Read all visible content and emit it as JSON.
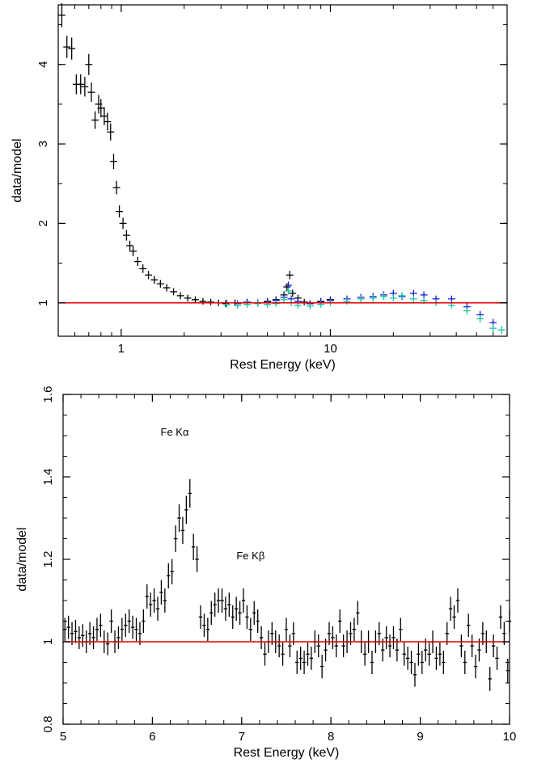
{
  "chart_data": [
    {
      "type": "scatter",
      "title": "",
      "xlabel": "Rest Energy (keV)",
      "ylabel": "data/model",
      "xscale": "log",
      "xlim": [
        0.5,
        70
      ],
      "ylim": [
        0.58,
        4.75
      ],
      "xticks": [
        1,
        10
      ],
      "xtick_labels": [
        "1",
        "10"
      ],
      "yticks": [
        1,
        2,
        3,
        4
      ],
      "ytick_labels": [
        "1",
        "2",
        "3",
        "4"
      ],
      "reference_line": {
        "y": 1,
        "color": "#dd0000"
      },
      "grid": false,
      "series": [
        {
          "color": "#000000",
          "points": [
            [
              0.52,
              4.62
            ],
            [
              0.55,
              4.22
            ],
            [
              0.58,
              4.2
            ],
            [
              0.61,
              3.75
            ],
            [
              0.64,
              3.75
            ],
            [
              0.67,
              3.72
            ],
            [
              0.7,
              4.0
            ],
            [
              0.72,
              3.65
            ],
            [
              0.75,
              3.3
            ],
            [
              0.78,
              3.5
            ],
            [
              0.8,
              3.45
            ],
            [
              0.83,
              3.35
            ],
            [
              0.86,
              3.28
            ],
            [
              0.89,
              3.15
            ],
            [
              0.92,
              2.78
            ],
            [
              0.95,
              2.45
            ],
            [
              0.98,
              2.15
            ],
            [
              1.02,
              2.0
            ],
            [
              1.06,
              1.85
            ],
            [
              1.1,
              1.72
            ],
            [
              1.14,
              1.65
            ],
            [
              1.2,
              1.52
            ],
            [
              1.27,
              1.43
            ],
            [
              1.35,
              1.35
            ],
            [
              1.44,
              1.29
            ],
            [
              1.54,
              1.24
            ],
            [
              1.65,
              1.19
            ],
            [
              1.78,
              1.14
            ],
            [
              1.92,
              1.09
            ],
            [
              2.08,
              1.06
            ],
            [
              2.26,
              1.04
            ],
            [
              2.46,
              1.02
            ],
            [
              2.68,
              1.01
            ],
            [
              2.92,
              1.0
            ],
            [
              3.15,
              0.99
            ],
            [
              3.5,
              1.0
            ],
            [
              4.0,
              1.01
            ],
            [
              4.5,
              1.0
            ],
            [
              5.0,
              1.02
            ],
            [
              5.5,
              1.04
            ],
            [
              6.0,
              1.1
            ],
            [
              6.2,
              1.2
            ],
            [
              6.4,
              1.35
            ],
            [
              6.6,
              1.12
            ],
            [
              7.0,
              1.06
            ],
            [
              7.5,
              1.01
            ],
            [
              8.0,
              0.99
            ],
            [
              9.0,
              1.02
            ],
            [
              10.0,
              1.04
            ]
          ]
        },
        {
          "color": "#1a1ad6",
          "points": [
            [
              3.2,
              1.0
            ],
            [
              3.6,
              0.99
            ],
            [
              4.0,
              1.01
            ],
            [
              4.5,
              1.0
            ],
            [
              5.0,
              1.01
            ],
            [
              5.5,
              1.03
            ],
            [
              6.0,
              1.07
            ],
            [
              6.3,
              1.22
            ],
            [
              6.5,
              1.05
            ],
            [
              7.0,
              1.02
            ],
            [
              8.0,
              0.99
            ],
            [
              9.0,
              1.01
            ],
            [
              10.0,
              1.03
            ],
            [
              12.0,
              1.05
            ],
            [
              14.0,
              1.07
            ],
            [
              16.0,
              1.08
            ],
            [
              18.0,
              1.1
            ],
            [
              20.0,
              1.12
            ],
            [
              22.0,
              1.08
            ],
            [
              25.0,
              1.12
            ],
            [
              28.0,
              1.1
            ],
            [
              32.0,
              1.05
            ],
            [
              38.0,
              1.05
            ],
            [
              45.0,
              0.95
            ],
            [
              52.0,
              0.85
            ],
            [
              60.0,
              0.75
            ]
          ]
        },
        {
          "color": "#19c6a3",
          "points": [
            [
              3.2,
              0.98
            ],
            [
              3.6,
              0.97
            ],
            [
              4.0,
              0.98
            ],
            [
              4.5,
              0.99
            ],
            [
              5.0,
              0.98
            ],
            [
              5.5,
              0.99
            ],
            [
              6.0,
              1.04
            ],
            [
              6.3,
              1.15
            ],
            [
              6.5,
              1.0
            ],
            [
              7.0,
              0.97
            ],
            [
              8.0,
              0.96
            ],
            [
              9.0,
              0.98
            ],
            [
              10.0,
              1.0
            ],
            [
              12.0,
              1.02
            ],
            [
              14.0,
              1.05
            ],
            [
              16.0,
              1.06
            ],
            [
              18.0,
              1.08
            ],
            [
              20.0,
              1.06
            ],
            [
              22.0,
              1.09
            ],
            [
              25.0,
              1.05
            ],
            [
              28.0,
              1.03
            ],
            [
              32.0,
              1.0
            ],
            [
              38.0,
              0.97
            ],
            [
              45.0,
              0.9
            ],
            [
              52.0,
              0.8
            ],
            [
              60.0,
              0.68
            ],
            [
              66.0,
              0.66
            ]
          ]
        }
      ]
    },
    {
      "type": "scatter",
      "title": "",
      "xlabel": "Rest Energy (keV)",
      "ylabel": "data/model",
      "xlim": [
        5,
        10
      ],
      "ylim": [
        0.8,
        1.6
      ],
      "xticks": [
        5,
        6,
        7,
        8,
        9,
        10
      ],
      "xtick_labels": [
        "5",
        "6",
        "7",
        "8",
        "9",
        "10"
      ],
      "yticks": [
        0.8,
        1.0,
        1.2,
        1.4,
        1.6
      ],
      "ytick_labels": [
        "0.8",
        "1",
        "1.2",
        "1.4",
        "1.6"
      ],
      "reference_line": {
        "y": 1,
        "color": "#dd0000"
      },
      "grid": false,
      "annotations": [
        {
          "text": "Fe Kα",
          "x": 6.25,
          "y": 1.5
        },
        {
          "text": "Fe Kβ",
          "x": 7.1,
          "y": 1.2
        }
      ],
      "series": [
        {
          "color": "#000000",
          "points": [
            [
              5.02,
              1.03
            ],
            [
              5.06,
              1.035
            ],
            [
              5.1,
              1.02
            ],
            [
              5.14,
              1.025
            ],
            [
              5.18,
              1.01
            ],
            [
              5.22,
              1.015
            ],
            [
              5.26,
              1.0
            ],
            [
              5.3,
              1.02
            ],
            [
              5.34,
              1.01
            ],
            [
              5.38,
              1.03
            ],
            [
              5.42,
              1.04
            ],
            [
              5.46,
              1.0
            ],
            [
              5.5,
              0.995
            ],
            [
              5.54,
              1.05
            ],
            [
              5.58,
              1.0
            ],
            [
              5.62,
              1.01
            ],
            [
              5.66,
              1.03
            ],
            [
              5.7,
              1.04
            ],
            [
              5.74,
              1.05
            ],
            [
              5.78,
              1.035
            ],
            [
              5.82,
              1.03
            ],
            [
              5.86,
              1.02
            ],
            [
              5.9,
              1.05
            ],
            [
              5.94,
              1.11
            ],
            [
              5.98,
              1.09
            ],
            [
              6.02,
              1.1
            ],
            [
              6.06,
              1.08
            ],
            [
              6.1,
              1.12
            ],
            [
              6.14,
              1.1
            ],
            [
              6.18,
              1.16
            ],
            [
              6.22,
              1.17
            ],
            [
              6.26,
              1.25
            ],
            [
              6.3,
              1.3
            ],
            [
              6.34,
              1.27
            ],
            [
              6.38,
              1.32
            ],
            [
              6.42,
              1.36
            ],
            [
              6.46,
              1.23
            ],
            [
              6.5,
              1.2
            ],
            [
              6.54,
              1.06
            ],
            [
              6.58,
              1.04
            ],
            [
              6.62,
              1.03
            ],
            [
              6.66,
              1.07
            ],
            [
              6.7,
              1.09
            ],
            [
              6.74,
              1.1
            ],
            [
              6.78,
              1.1
            ],
            [
              6.82,
              1.08
            ],
            [
              6.86,
              1.09
            ],
            [
              6.9,
              1.06
            ],
            [
              6.94,
              1.08
            ],
            [
              6.98,
              1.07
            ],
            [
              7.02,
              1.1
            ],
            [
              7.06,
              1.06
            ],
            [
              7.1,
              1.03
            ],
            [
              7.14,
              1.07
            ],
            [
              7.18,
              1.05
            ],
            [
              7.22,
              1.01
            ],
            [
              7.26,
              0.97
            ],
            [
              7.3,
              1.0
            ],
            [
              7.34,
              1.02
            ],
            [
              7.38,
              1.0
            ],
            [
              7.42,
              0.99
            ],
            [
              7.46,
              0.97
            ],
            [
              7.5,
              1.03
            ],
            [
              7.54,
              0.99
            ],
            [
              7.58,
              1.02
            ],
            [
              7.62,
              0.95
            ],
            [
              7.66,
              0.96
            ],
            [
              7.7,
              0.95
            ],
            [
              7.74,
              0.97
            ],
            [
              7.78,
              0.96
            ],
            [
              7.82,
              1.0
            ],
            [
              7.86,
              0.99
            ],
            [
              7.9,
              0.94
            ],
            [
              7.94,
              0.98
            ],
            [
              7.98,
              1.02
            ],
            [
              8.02,
              1.01
            ],
            [
              8.06,
              0.99
            ],
            [
              8.1,
              1.05
            ],
            [
              8.14,
              0.99
            ],
            [
              8.18,
              1.0
            ],
            [
              8.22,
              1.02
            ],
            [
              8.26,
              1.03
            ],
            [
              8.3,
              1.07
            ],
            [
              8.34,
              1.0
            ],
            [
              8.38,
              0.97
            ],
            [
              8.42,
              1.0
            ],
            [
              8.46,
              0.95
            ],
            [
              8.5,
              1.0
            ],
            [
              8.54,
              1.02
            ],
            [
              8.58,
              0.98
            ],
            [
              8.62,
              1.01
            ],
            [
              8.66,
              0.99
            ],
            [
              8.7,
              1.01
            ],
            [
              8.74,
              0.98
            ],
            [
              8.78,
              1.03
            ],
            [
              8.82,
              0.97
            ],
            [
              8.86,
              0.96
            ],
            [
              8.9,
              0.95
            ],
            [
              8.94,
              0.92
            ],
            [
              8.98,
              0.97
            ],
            [
              9.02,
              0.95
            ],
            [
              9.06,
              0.98
            ],
            [
              9.1,
              0.97
            ],
            [
              9.14,
              1.0
            ],
            [
              9.18,
              0.96
            ],
            [
              9.22,
              0.97
            ],
            [
              9.26,
              0.95
            ],
            [
              9.3,
              1.02
            ],
            [
              9.34,
              1.08
            ],
            [
              9.38,
              1.06
            ],
            [
              9.42,
              1.1
            ],
            [
              9.46,
              0.99
            ],
            [
              9.5,
              0.95
            ],
            [
              9.54,
              1.04
            ],
            [
              9.58,
              0.99
            ],
            [
              9.62,
              0.94
            ],
            [
              9.66,
              0.98
            ],
            [
              9.7,
              1.02
            ],
            [
              9.74,
              1.0
            ],
            [
              9.78,
              0.91
            ],
            [
              9.82,
              0.99
            ],
            [
              9.86,
              0.96
            ],
            [
              9.9,
              1.06
            ],
            [
              9.94,
              1.02
            ],
            [
              9.98,
              0.93
            ],
            [
              10.0,
              1.05
            ]
          ]
        }
      ]
    }
  ]
}
